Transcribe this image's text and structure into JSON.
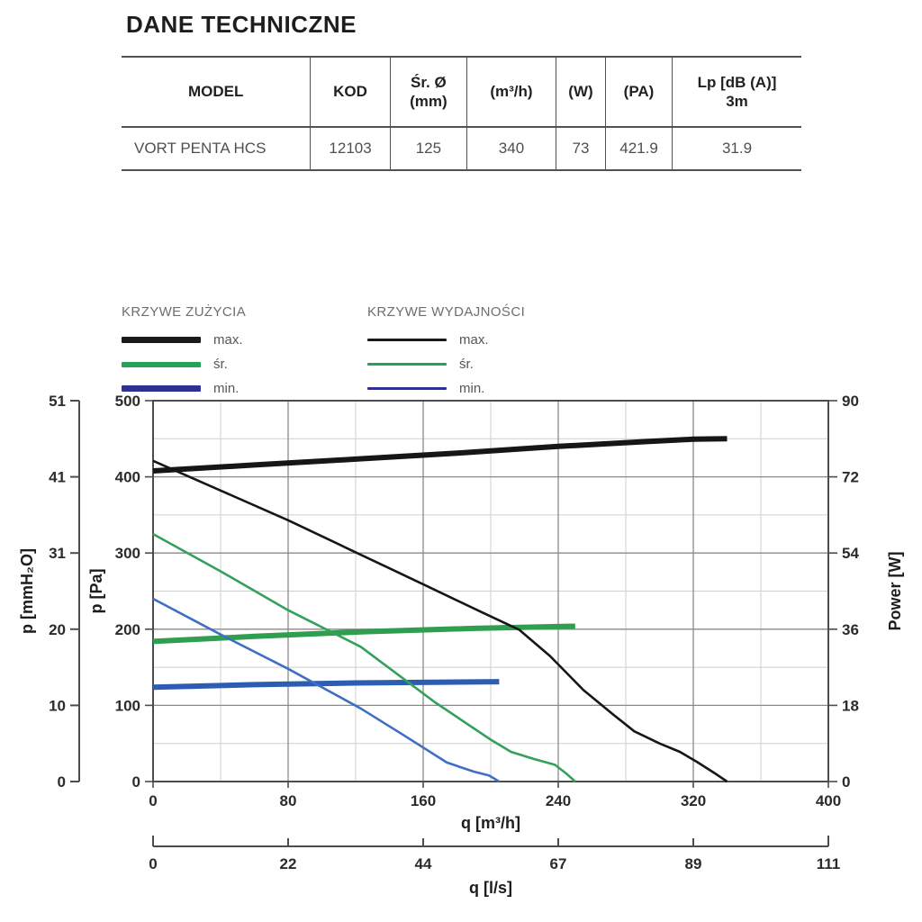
{
  "title": "DANE TECHNICZNE",
  "table": {
    "headers": [
      "MODEL",
      "KOD",
      "Śr. Ø\n(mm)",
      "(m³/h)",
      "(W)",
      "(PA)",
      "Lp [dB (A)]\n3m"
    ],
    "row": [
      "VORT PENTA HCS",
      "12103",
      "125",
      "340",
      "73",
      "421.9",
      "31.9"
    ]
  },
  "legend": {
    "consumption": {
      "title": "KRZYWE ZUŻYCIA",
      "items": [
        {
          "label": "max.",
          "color": "#1a1a1a"
        },
        {
          "label": "śr.",
          "color": "#23a25a"
        },
        {
          "label": "min.",
          "color": "#2e3192"
        }
      ]
    },
    "performance": {
      "title": "KRZYWE WYDAJNOŚCI",
      "items": [
        {
          "label": "max.",
          "color": "#1a1a1a"
        },
        {
          "label": "śr.",
          "color": "#23a25a"
        },
        {
          "label": "min.",
          "color": "#2e3192"
        }
      ]
    }
  },
  "chart_data": {
    "type": "line",
    "x_axis": {
      "label": "q [m³/h]",
      "range": [
        0,
        400
      ],
      "ticks": [
        0,
        80,
        160,
        240,
        320,
        400
      ],
      "minor_step": 40
    },
    "x_axis2": {
      "label": "q [l/s]",
      "ticks": [
        0,
        22,
        44,
        67,
        89,
        111
      ]
    },
    "y_axis_left": {
      "label": "p [Pa]",
      "range": [
        0,
        500
      ],
      "ticks": [
        0,
        100,
        200,
        300,
        400,
        500
      ],
      "minor_step": 50
    },
    "y_axis_left2": {
      "label": "p [mmH₂O]",
      "ticks": [
        0,
        10,
        20,
        31,
        41,
        51
      ]
    },
    "y_axis_right": {
      "label": "Power [W]",
      "range": [
        0,
        90
      ],
      "ticks": [
        0,
        18,
        36,
        54,
        72,
        90
      ]
    },
    "grid": true,
    "series": [
      {
        "name": "zuzycia-max",
        "legend": "KRZYWE ZUŻYCIA max.",
        "axis": "right",
        "color": "#161616",
        "width": 6,
        "points": [
          [
            0,
            73.4
          ],
          [
            60,
            74.8
          ],
          [
            120,
            76.2
          ],
          [
            180,
            77.6
          ],
          [
            240,
            79.2
          ],
          [
            290,
            80.3
          ],
          [
            320,
            80.9
          ],
          [
            340,
            81
          ]
        ]
      },
      {
        "name": "zuzycia-sr",
        "legend": "KRZYWE ZUŻYCIA śr.",
        "axis": "right",
        "color": "#2f9e4f",
        "width": 6,
        "points": [
          [
            0,
            33.1
          ],
          [
            60,
            34.3
          ],
          [
            125,
            35.4
          ],
          [
            190,
            36.2
          ],
          [
            250,
            36.7
          ]
        ]
      },
      {
        "name": "zuzycia-min",
        "legend": "KRZYWE ZUŻYCIA min.",
        "axis": "right",
        "color": "#2d5db2",
        "width": 6,
        "points": [
          [
            0,
            22.3
          ],
          [
            60,
            22.9
          ],
          [
            120,
            23.3
          ],
          [
            205,
            23.6
          ]
        ]
      },
      {
        "name": "wydajnosc-max",
        "legend": "KRZYWE WYDAJNOŚCI max.",
        "axis": "left",
        "color": "#161616",
        "width": 2.6,
        "points": [
          [
            0,
            421
          ],
          [
            40,
            382
          ],
          [
            80,
            343
          ],
          [
            120,
            301
          ],
          [
            160,
            259
          ],
          [
            195,
            222
          ],
          [
            217,
            199
          ],
          [
            235,
            165
          ],
          [
            255,
            120
          ],
          [
            272,
            89
          ],
          [
            285,
            66
          ],
          [
            300,
            50
          ],
          [
            312,
            39
          ],
          [
            322,
            26
          ],
          [
            334,
            9
          ],
          [
            340,
            0
          ]
        ]
      },
      {
        "name": "wydajnosc-sr",
        "legend": "KRZYWE WYDAJNOŚCI śr.",
        "axis": "left",
        "color": "#33a15c",
        "width": 2.6,
        "points": [
          [
            0,
            325
          ],
          [
            40,
            276
          ],
          [
            80,
            225
          ],
          [
            123,
            177
          ],
          [
            167,
            104
          ],
          [
            200,
            55
          ],
          [
            212,
            39
          ],
          [
            225,
            30
          ],
          [
            238,
            22
          ],
          [
            245,
            10
          ],
          [
            250,
            0
          ]
        ]
      },
      {
        "name": "wydajnosc-min",
        "legend": "KRZYWE WYDAJNOŚCI min.",
        "axis": "left",
        "color": "#3f6fc4",
        "width": 2.6,
        "points": [
          [
            0,
            240
          ],
          [
            40,
            193
          ],
          [
            80,
            148
          ],
          [
            123,
            96
          ],
          [
            149,
            60
          ],
          [
            174,
            25
          ],
          [
            190,
            13
          ],
          [
            199,
            8
          ],
          [
            205,
            0
          ]
        ]
      }
    ]
  }
}
